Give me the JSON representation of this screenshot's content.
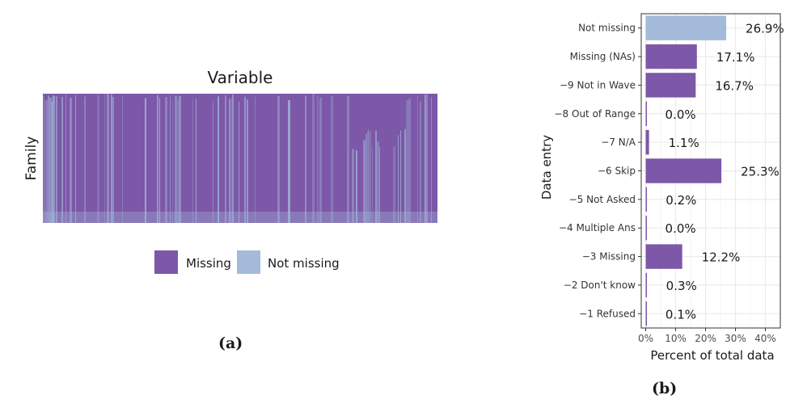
{
  "colors": {
    "missing": "#7d57a8",
    "not_missing": "#a3bbd9",
    "grid": "#ebebeb",
    "panel_border": "#333333"
  },
  "panel_a": {
    "title": "Variable",
    "ylabel": "Family",
    "legend": [
      {
        "label": "Missing",
        "color": "#7d57a8"
      },
      {
        "label": "Not missing",
        "color": "#a3bbd9"
      }
    ],
    "sublabel": "(a)"
  },
  "panel_b": {
    "sublabel": "(b)"
  },
  "chart_data": [
    {
      "type": "heatmap",
      "title": "Variable",
      "xlabel": "",
      "ylabel": "Family",
      "legend": [
        "Missing",
        "Not missing"
      ],
      "legend_position": "bottom"
    },
    {
      "type": "bar",
      "orientation": "horizontal",
      "xlabel": "Percent of total data",
      "ylabel": "Data entry",
      "categories": [
        "Not missing",
        "Missing (NAs)",
        "−9 Not in Wave",
        "−8 Out of Range",
        "−7 N/A",
        "−6 Skip",
        "−5 Not Asked",
        "−4 Multiple Ans",
        "−3 Missing",
        "−2 Don't know",
        "−1 Refused"
      ],
      "values": [
        26.9,
        17.1,
        16.7,
        0.0,
        1.1,
        25.3,
        0.2,
        0.0,
        12.2,
        0.3,
        0.1
      ],
      "labels": [
        "26.9%",
        "17.1%",
        "16.7%",
        "0.0%",
        "1.1%",
        "25.3%",
        "0.2%",
        "0.0%",
        "12.2%",
        "0.3%",
        "0.1%"
      ],
      "bar_colors": [
        "#a3bbd9",
        "#7d57a8",
        "#7d57a8",
        "#7d57a8",
        "#7d57a8",
        "#7d57a8",
        "#7d57a8",
        "#7d57a8",
        "#7d57a8",
        "#7d57a8",
        "#7d57a8"
      ],
      "xticks": [
        0,
        10,
        20,
        30,
        40
      ],
      "xtick_labels": [
        "0%",
        "10%",
        "20%",
        "30%",
        "40%"
      ],
      "xlim": [
        -1.5,
        45
      ],
      "grid": true
    }
  ]
}
